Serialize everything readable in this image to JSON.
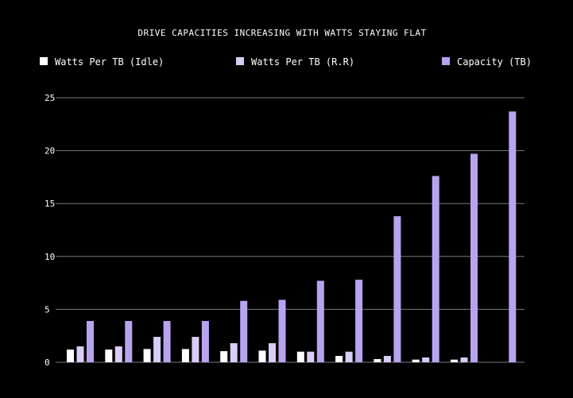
{
  "chart_data": {
    "type": "bar",
    "title": "DRIVE CAPACITIES INCREASING WITH WATTS STAYING FLAT",
    "xlabel": "",
    "ylabel": "",
    "ylim": [
      0,
      25
    ],
    "yticks": [
      0,
      5,
      10,
      15,
      20,
      25
    ],
    "grid": true,
    "legend_position": "top",
    "categories": [
      "",
      "",
      "",
      "",
      "",
      "",
      "",
      "",
      "",
      "",
      "",
      ""
    ],
    "series": [
      {
        "name": "Watts Per TB (Idle)",
        "color": "#ffffff",
        "values": [
          1.2,
          1.2,
          1.25,
          1.25,
          1.05,
          1.1,
          1.0,
          0.6,
          0.3,
          0.25,
          0.25,
          null
        ]
      },
      {
        "name": "Watts Per TB (R.R)",
        "color": "#d8cdf6",
        "values": [
          1.5,
          1.5,
          2.4,
          2.4,
          1.8,
          1.8,
          1.0,
          1.0,
          0.6,
          0.45,
          0.45,
          null
        ]
      },
      {
        "name": "Capacity (TB)",
        "color": "#b9a3ef",
        "values": [
          3.9,
          3.9,
          3.9,
          3.9,
          5.8,
          5.9,
          7.7,
          7.8,
          13.8,
          17.6,
          19.7,
          23.7
        ]
      }
    ]
  }
}
